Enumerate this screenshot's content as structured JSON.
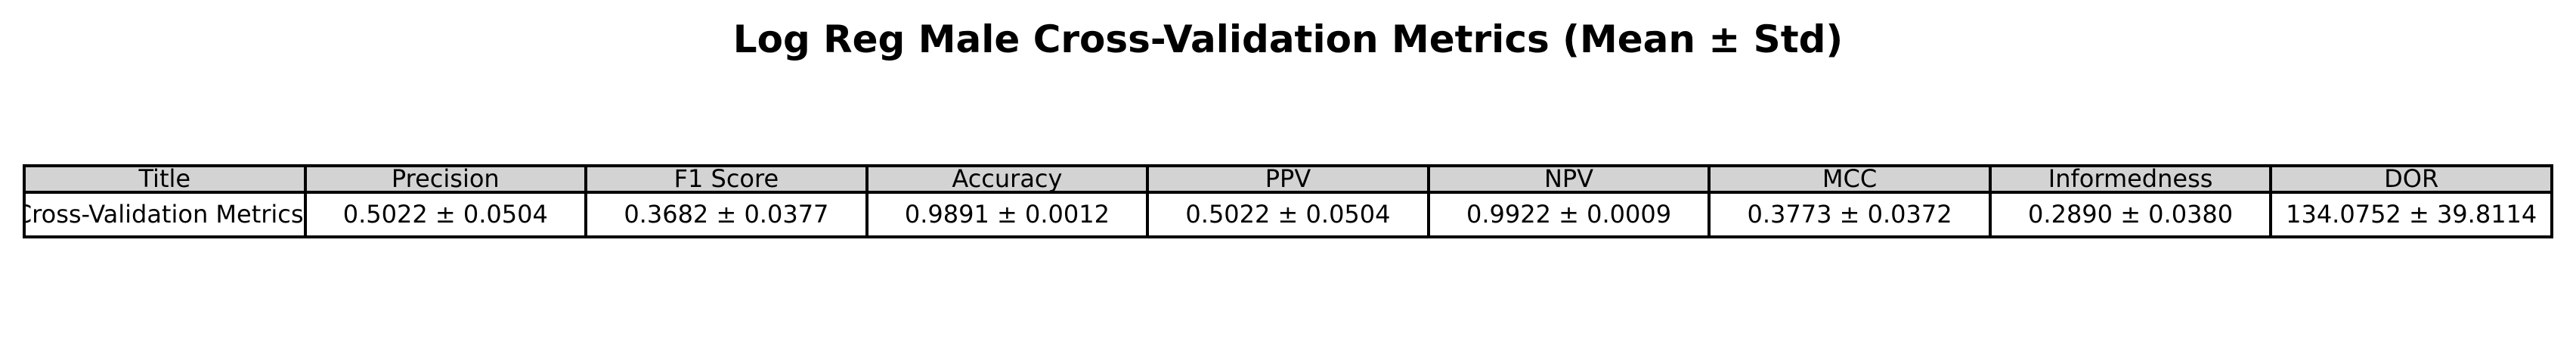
{
  "title": "Log Reg Male Cross-Validation Metrics (Mean ± Std)",
  "chart_data": {
    "type": "table",
    "title": "Log Reg Male Cross-Validation Metrics (Mean ± Std)",
    "columns": [
      "Title",
      "Precision",
      "F1 Score",
      "Accuracy",
      "PPV",
      "NPV",
      "MCC",
      "Informedness",
      "DOR"
    ],
    "rows": [
      [
        "Log Reg Male Cross-Validation Metrics",
        "0.5022 ± 0.0504",
        "0.3682 ± 0.0377",
        "0.9891 ± 0.0012",
        "0.5022 ± 0.0504",
        "0.9922 ± 0.0009",
        "0.3773 ± 0.0372",
        "0.2890 ± 0.0380",
        "134.0752 ± 39.8114"
      ]
    ],
    "header_color": "#d3d3d3",
    "border_color": "#000000"
  }
}
